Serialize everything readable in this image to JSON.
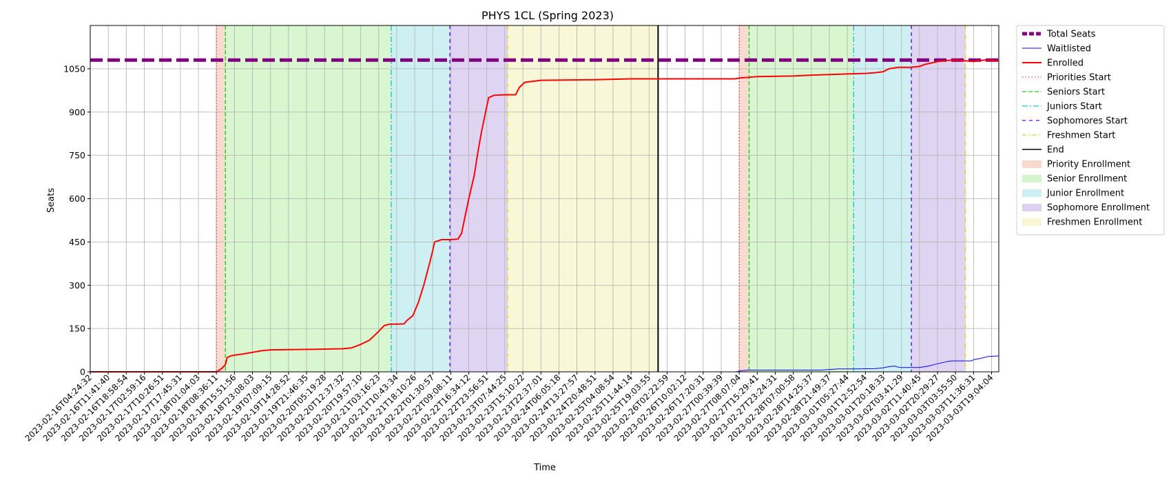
{
  "chart_data": {
    "type": "line",
    "title": "PHYS 1CL (Spring 2023)",
    "xlabel": "Time",
    "ylabel": "Seats",
    "ylim": [
      0,
      1200
    ],
    "yticks": [
      0,
      150,
      300,
      450,
      600,
      750,
      900,
      1050
    ],
    "grid": true,
    "legend_position": "outside-right",
    "xtick_labels": [
      "2023-02-16T04:24:32",
      "2023-02-16T11:41:40",
      "2023-02-16T18:58:54",
      "2023-02-17T02:59:16",
      "2023-02-17T10:26:51",
      "2023-02-17T17:45:31",
      "2023-02-18T01:04:03",
      "2023-02-18T08:36:11",
      "2023-02-18T15:51:56",
      "2023-02-18T23:08:03",
      "2023-02-19T07:09:15",
      "2023-02-19T14:28:52",
      "2023-02-19T21:46:35",
      "2023-02-20T05:19:28",
      "2023-02-20T12:37:32",
      "2023-02-20T19:57:10",
      "2023-02-21T03:16:23",
      "2023-02-21T10:43:34",
      "2023-02-21T18:10:26",
      "2023-02-22T01:30:57",
      "2023-02-22T09:08:11",
      "2023-02-22T16:34:12",
      "2023-02-22T23:56:51",
      "2023-02-23T07:44:25",
      "2023-02-23T15:10:22",
      "2023-02-23T22:37:01",
      "2023-02-24T06:05:18",
      "2023-02-24T13:27:57",
      "2023-02-24T20:48:51",
      "2023-02-25T04:08:54",
      "2023-02-25T11:44:14",
      "2023-02-25T19:03:55",
      "2023-02-26T02:22:59",
      "2023-02-26T10:02:12",
      "2023-02-26T17:20:31",
      "2023-02-27T00:39:39",
      "2023-02-27T08:07:04",
      "2023-02-27T15:29:41",
      "2023-02-27T23:24:31",
      "2023-02-28T07:00:58",
      "2023-02-28T14:25:37",
      "2023-02-28T21:49:37",
      "2023-03-01T05:27:44",
      "2023-03-01T12:52:54",
      "2023-03-01T20:18:33",
      "2023-03-02T03:41:29",
      "2023-03-02T11:40:45",
      "2023-03-02T20:29:27",
      "2023-03-03T03:55:50",
      "2023-03-03T11:36:31",
      "2023-03-03T19:04:04"
    ],
    "x_domain": [
      0,
      50.4
    ],
    "series": [
      {
        "name": "Total Seats",
        "kind": "hline",
        "color": "#800080",
        "style": "dashed",
        "width": 5,
        "value": 1080
      },
      {
        "name": "Waitlisted",
        "color": "#0000ff",
        "style": "solid",
        "width": 1,
        "points": [
          [
            0,
            0
          ],
          [
            35.8,
            0
          ],
          [
            35.9,
            1
          ],
          [
            36.1,
            4
          ],
          [
            36.5,
            6
          ],
          [
            38,
            6
          ],
          [
            40.5,
            6
          ],
          [
            41,
            8
          ],
          [
            41.5,
            10
          ],
          [
            42.5,
            10
          ],
          [
            43.5,
            11
          ],
          [
            44,
            14
          ],
          [
            44.3,
            18
          ],
          [
            44.6,
            20
          ],
          [
            44.9,
            15
          ],
          [
            46,
            15
          ],
          [
            46.5,
            20
          ],
          [
            47,
            28
          ],
          [
            47.5,
            35
          ],
          [
            47.8,
            38
          ],
          [
            48.5,
            38
          ],
          [
            48.9,
            38
          ],
          [
            49,
            42
          ],
          [
            49.5,
            48
          ],
          [
            49.8,
            53
          ],
          [
            50.4,
            55
          ]
        ]
      },
      {
        "name": "Enrolled",
        "color": "#ff0000",
        "style": "solid",
        "width": 2,
        "points": [
          [
            0,
            0
          ],
          [
            7,
            0
          ],
          [
            7.1,
            3
          ],
          [
            7.3,
            12
          ],
          [
            7.5,
            25
          ],
          [
            7.6,
            50
          ],
          [
            7.8,
            55
          ],
          [
            8,
            58
          ],
          [
            8.5,
            62
          ],
          [
            9.5,
            73
          ],
          [
            10,
            76
          ],
          [
            11,
            77
          ],
          [
            12.5,
            78
          ],
          [
            14,
            80
          ],
          [
            14.5,
            83
          ],
          [
            15,
            95
          ],
          [
            15.5,
            110
          ],
          [
            16,
            140
          ],
          [
            16.3,
            160
          ],
          [
            16.6,
            165
          ],
          [
            17,
            165
          ],
          [
            17.4,
            166
          ],
          [
            17.6,
            180
          ],
          [
            17.9,
            195
          ],
          [
            18.2,
            240
          ],
          [
            18.5,
            300
          ],
          [
            18.8,
            370
          ],
          [
            19,
            420
          ],
          [
            19.1,
            450
          ],
          [
            19.5,
            458
          ],
          [
            20,
            458
          ],
          [
            20.4,
            460
          ],
          [
            20.6,
            480
          ],
          [
            20.8,
            540
          ],
          [
            21,
            600
          ],
          [
            21.3,
            680
          ],
          [
            21.5,
            760
          ],
          [
            21.7,
            830
          ],
          [
            21.9,
            890
          ],
          [
            22.1,
            950
          ],
          [
            22.4,
            958
          ],
          [
            23,
            960
          ],
          [
            23.6,
            960
          ],
          [
            23.8,
            985
          ],
          [
            24.1,
            1003
          ],
          [
            25,
            1010
          ],
          [
            28,
            1012
          ],
          [
            30,
            1015
          ],
          [
            32,
            1015
          ],
          [
            35.8,
            1015
          ],
          [
            36,
            1018
          ],
          [
            36.5,
            1020
          ],
          [
            37,
            1023
          ],
          [
            39,
            1025
          ],
          [
            40,
            1028
          ],
          [
            41,
            1030
          ],
          [
            42,
            1032
          ],
          [
            43,
            1034
          ],
          [
            43.5,
            1036
          ],
          [
            44,
            1040
          ],
          [
            44.3,
            1050
          ],
          [
            44.8,
            1055
          ],
          [
            45.5,
            1055
          ],
          [
            46,
            1058
          ],
          [
            46.3,
            1065
          ],
          [
            47,
            1075
          ],
          [
            47.8,
            1080
          ],
          [
            48.5,
            1078
          ],
          [
            49,
            1075
          ],
          [
            49.6,
            1080
          ],
          [
            50.4,
            1078
          ]
        ]
      }
    ],
    "phases": [
      {
        "name": "Priority Enrollment",
        "start": 7.0,
        "end": 7.5,
        "color": "#f4c0a8"
      },
      {
        "name": "Senior Enrollment",
        "start": 7.5,
        "end": 16.7,
        "color": "#b8eeaa"
      },
      {
        "name": "Junior Enrollment",
        "start": 16.7,
        "end": 19.95,
        "color": "#a8e4ea"
      },
      {
        "name": "Sophomore Enrollment",
        "start": 19.95,
        "end": 23.15,
        "color": "#c7b0ea"
      },
      {
        "name": "Freshmen Enrollment",
        "start": 23.15,
        "end": 31.5,
        "color": "#f2f2b8"
      },
      {
        "name": "Priority Enrollment",
        "start": 36.0,
        "end": 36.55,
        "color": "#f4c0a8"
      },
      {
        "name": "Senior Enrollment",
        "start": 36.55,
        "end": 42.35,
        "color": "#b8eeaa"
      },
      {
        "name": "Junior Enrollment",
        "start": 42.35,
        "end": 45.55,
        "color": "#a8e4ea"
      },
      {
        "name": "Sophomore Enrollment",
        "start": 45.55,
        "end": 48.55,
        "color": "#c7b0ea"
      }
    ],
    "markers": [
      {
        "name": "Priorities Start",
        "x": 7.0,
        "color": "#ff4040",
        "dash": "1.5,3"
      },
      {
        "name": "Seniors Start",
        "x": 7.5,
        "color": "#22cc22",
        "dash": "6,3"
      },
      {
        "name": "Juniors Start",
        "x": 16.7,
        "color": "#17c9c9",
        "dash": "8,3,2,3"
      },
      {
        "name": "Sophomores Start",
        "x": 19.95,
        "color": "#6a00ff",
        "dash": "5,5"
      },
      {
        "name": "Freshmen Start",
        "x": 23.15,
        "color": "#e8cc20",
        "dash": "6,2,1,2,1,2"
      },
      {
        "name": "End",
        "x": 31.5,
        "color": "#000000",
        "dash": ""
      },
      {
        "name": "Priorities Start",
        "x": 36.0,
        "color": "#ff4040",
        "dash": "1.5,3"
      },
      {
        "name": "Seniors Start",
        "x": 36.55,
        "color": "#22cc22",
        "dash": "6,3"
      },
      {
        "name": "Juniors Start",
        "x": 42.35,
        "color": "#17c9c9",
        "dash": "8,3,2,3"
      },
      {
        "name": "Sophomores Start",
        "x": 45.55,
        "color": "#6a00ff",
        "dash": "5,5"
      },
      {
        "name": "Freshmen Start",
        "x": 48.55,
        "color": "#e8cc20",
        "dash": "6,2,1,2,1,2"
      }
    ],
    "legend": [
      {
        "label": "Total Seats",
        "kind": "line",
        "color": "#800080",
        "dash": "7,3",
        "width": 5
      },
      {
        "label": "Waitlisted",
        "kind": "line",
        "color": "#0000ff",
        "dash": "",
        "width": 1
      },
      {
        "label": "Enrolled",
        "kind": "line",
        "color": "#ff0000",
        "dash": "",
        "width": 2
      },
      {
        "label": "Priorities Start",
        "kind": "line",
        "color": "#ff4040",
        "dash": "1.5,3",
        "width": 1.3
      },
      {
        "label": "Seniors Start",
        "kind": "line",
        "color": "#22cc22",
        "dash": "6,3",
        "width": 1.3
      },
      {
        "label": "Juniors Start",
        "kind": "line",
        "color": "#17c9c9",
        "dash": "8,3,2,3",
        "width": 1.3
      },
      {
        "label": "Sophomores Start",
        "kind": "line",
        "color": "#6a00ff",
        "dash": "5,5",
        "width": 1.3
      },
      {
        "label": "Freshmen Start",
        "kind": "line",
        "color": "#e8cc20",
        "dash": "6,2,1,2,1,2",
        "width": 1.3
      },
      {
        "label": "End",
        "kind": "line",
        "color": "#000000",
        "dash": "",
        "width": 1.5
      },
      {
        "label": "Priority Enrollment",
        "kind": "patch",
        "color": "#f4c0a8"
      },
      {
        "label": "Senior Enrollment",
        "kind": "patch",
        "color": "#b8eeaa"
      },
      {
        "label": "Junior Enrollment",
        "kind": "patch",
        "color": "#a8e4ea"
      },
      {
        "label": "Sophomore Enrollment",
        "kind": "patch",
        "color": "#c7b0ea"
      },
      {
        "label": "Freshmen Enrollment",
        "kind": "patch",
        "color": "#f2f2b8"
      }
    ]
  }
}
